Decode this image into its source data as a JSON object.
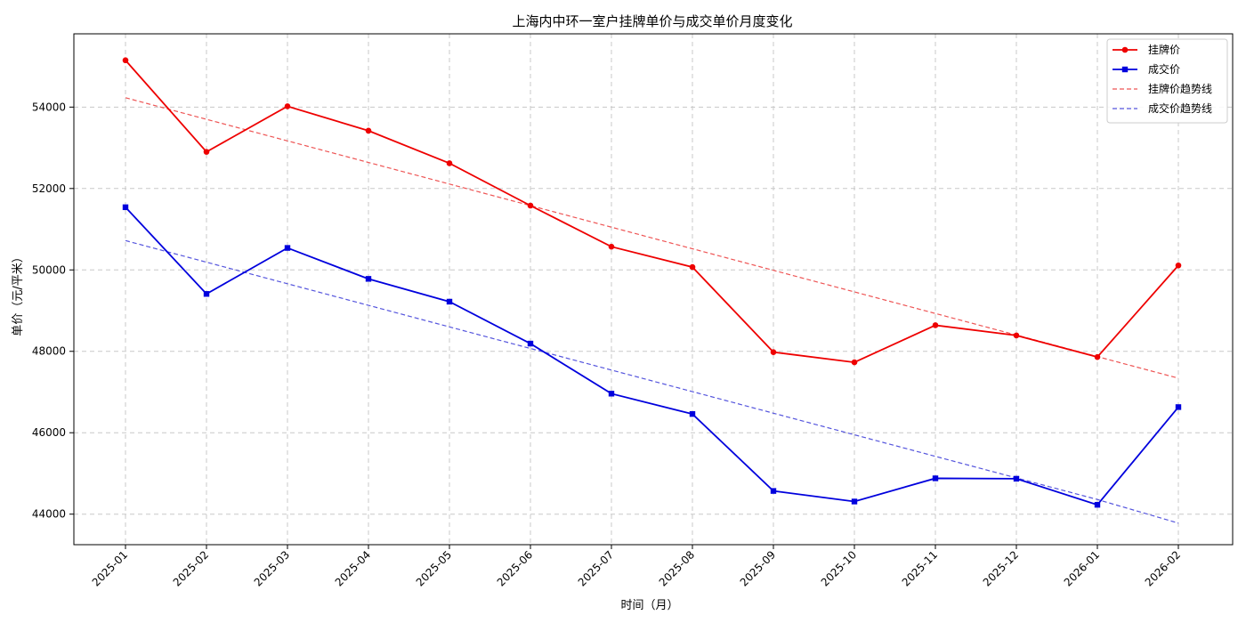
{
  "chart_data": {
    "type": "line",
    "title": "上海内中环一室户挂牌单价与成交单价月度变化",
    "xlabel": "时间（月）",
    "ylabel": "单价（元/平米）",
    "categories": [
      "2025-01",
      "2025-02",
      "2025-03",
      "2025-04",
      "2025-05",
      "2025-06",
      "2025-07",
      "2025-08",
      "2025-09",
      "2025-10",
      "2025-11",
      "2025-12",
      "2026-01",
      "2026-02"
    ],
    "ylim": [
      43250,
      55800
    ],
    "yticks": [
      44000,
      46000,
      48000,
      50000,
      52000,
      54000
    ],
    "grid": true,
    "legend_position": "top-right",
    "series": [
      {
        "name": "挂牌价",
        "kind": "line",
        "marker": "circle",
        "color": "#ee0000",
        "dashed": false,
        "values": [
          55150,
          52900,
          54020,
          53420,
          52620,
          51580,
          50570,
          50070,
          47980,
          47730,
          48640,
          48390,
          47860,
          50110
        ]
      },
      {
        "name": "成交价",
        "kind": "line",
        "marker": "square",
        "color": "#0000dd",
        "dashed": false,
        "values": [
          51540,
          49410,
          50540,
          49780,
          49220,
          48190,
          46960,
          46460,
          44570,
          44310,
          44880,
          44870,
          44230,
          46630
        ]
      },
      {
        "name": "挂牌价趋势线",
        "kind": "trend",
        "marker": "none",
        "color": "#ee5555",
        "dashed": true,
        "values": [
          54230,
          53700,
          53170,
          52640,
          52110,
          51580,
          51050,
          50520,
          49990,
          49460,
          48930,
          48400,
          47870,
          47340
        ]
      },
      {
        "name": "成交价趋势线",
        "kind": "trend",
        "marker": "none",
        "color": "#5555dd",
        "dashed": true,
        "values": [
          50720,
          50190,
          49660,
          49130,
          48600,
          48070,
          47540,
          47010,
          46480,
          45950,
          45420,
          44890,
          44360,
          43780
        ]
      }
    ]
  }
}
